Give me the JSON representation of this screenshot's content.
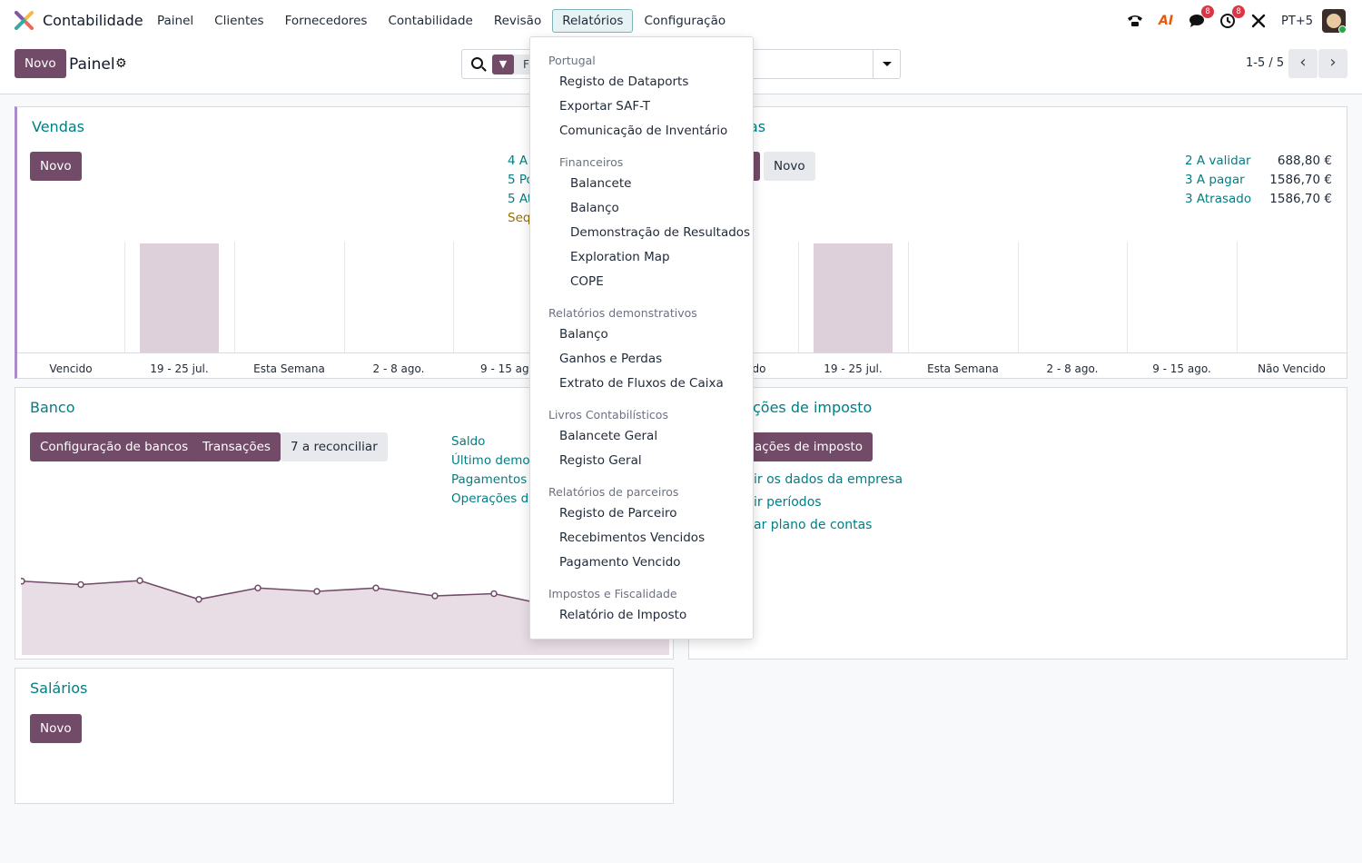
{
  "nav": {
    "app_name": "Contabilidade",
    "menus": [
      "Painel",
      "Clientes",
      "Fornecedores",
      "Contabilidade",
      "Revisão",
      "Relatórios",
      "Configuração"
    ],
    "active_menu": "Relatórios",
    "company": "PT+5",
    "ai_label": "AI",
    "messages_badge": "8",
    "activity_badge": "8"
  },
  "control": {
    "new_label": "Novo",
    "title": "Painel",
    "facet_text": "F",
    "pager": "1-5 / 5"
  },
  "vendas": {
    "title": "Vendas",
    "new_label": "Novo",
    "stats": [
      "4 A",
      "5 Po",
      "5 At",
      "Seq"
    ],
    "x_labels": [
      "Vencido",
      "19 - 25 jul.",
      "Esta Semana",
      "2 - 8 ago.",
      "9 - 15 ago"
    ]
  },
  "compras": {
    "title_fragment": "as",
    "new_label": "Novo",
    "stats": [
      {
        "label": "2 A validar",
        "amount": "688,80 €"
      },
      {
        "label": "3 A pagar",
        "amount": "1586,70 €"
      },
      {
        "label": "3 Atrasado",
        "amount": "1586,70 €"
      }
    ],
    "x_labels": [
      "do",
      "19 - 25 jul.",
      "Esta Semana",
      "2 - 8 ago.",
      "9 - 15 ago.",
      "Não Vencido"
    ]
  },
  "banco": {
    "title": "Banco",
    "buttons": [
      "Configuração de bancos",
      "Transações"
    ],
    "reconcile_label": "7 a reconciliar",
    "links": [
      "Saldo",
      "Último demon",
      "Pagamentos",
      "Operações div"
    ]
  },
  "impostos": {
    "title_fragment": "ções de imposto",
    "button_fragment": "ações de imposto",
    "links": [
      "ir os dados da empresa",
      "ir períodos",
      "ar plano de contas"
    ]
  },
  "salarios": {
    "title": "Salários",
    "new_label": "Novo"
  },
  "dropdown": {
    "sections": [
      {
        "header": "Portugal",
        "items": [
          "Registo de Dataports",
          "Exportar SAF-T",
          "Comunicação de Inventário"
        ]
      },
      {
        "header": "Financeiros",
        "items": [
          "Balancete",
          "Balanço",
          "Demonstração de Resultados",
          "Exploration Map",
          "COPE"
        ]
      },
      {
        "header": "Relatórios demonstrativos",
        "items": [
          "Balanço",
          "Ganhos e Perdas",
          "Extrato de Fluxos de Caixa"
        ]
      },
      {
        "header": "Livros Contabilísticos",
        "items": [
          "Balancete Geral",
          "Registo Geral"
        ]
      },
      {
        "header": "Relatórios de parceiros",
        "items": [
          "Registo de Parceiro",
          "Recebimentos Vencidos",
          "Pagamento Vencido"
        ]
      },
      {
        "header": "Impostos e Fiscalidade",
        "items": [
          "Relatório de Imposto"
        ]
      }
    ]
  },
  "chart_data": {
    "type": "area",
    "values": [
      6.5,
      6.2,
      6.55,
      4.9,
      5.9,
      5.6,
      5.9,
      5.2,
      5.4,
      4.3
    ],
    "ylim": [
      0,
      8
    ]
  },
  "colors": {
    "primary": "#714b67",
    "link": "#017e84",
    "bar": "#ddd0da"
  }
}
